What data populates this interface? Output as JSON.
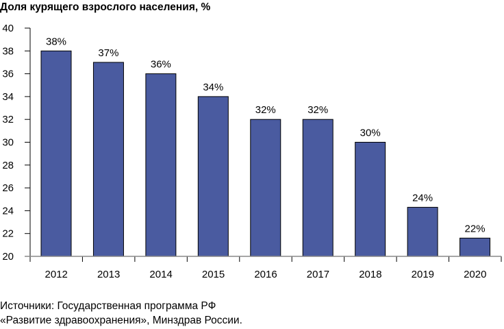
{
  "chart_data": {
    "type": "bar",
    "title": "Доля курящего взрослого населения, %",
    "categories": [
      "2012",
      "2013",
      "2014",
      "2015",
      "2016",
      "2017",
      "2018",
      "2019",
      "2020"
    ],
    "values": [
      38,
      37,
      36,
      34,
      32,
      32,
      30,
      24.3,
      21.6
    ],
    "data_labels": [
      "38%",
      "37%",
      "36%",
      "34%",
      "32%",
      "32%",
      "30%",
      "24%",
      "22%"
    ],
    "ylim": [
      20,
      40
    ],
    "yticks": [
      "20",
      "22",
      "24",
      "26",
      "28",
      "30",
      "32",
      "34",
      "36",
      "38",
      "40"
    ],
    "xlabel": "",
    "ylabel": "",
    "grid": false,
    "bar_color": "#4a5ba0"
  },
  "source": {
    "line1": "Источники: Государственная программа РФ",
    "line2": "«Развитие здравоохранения», Минздрав России."
  }
}
